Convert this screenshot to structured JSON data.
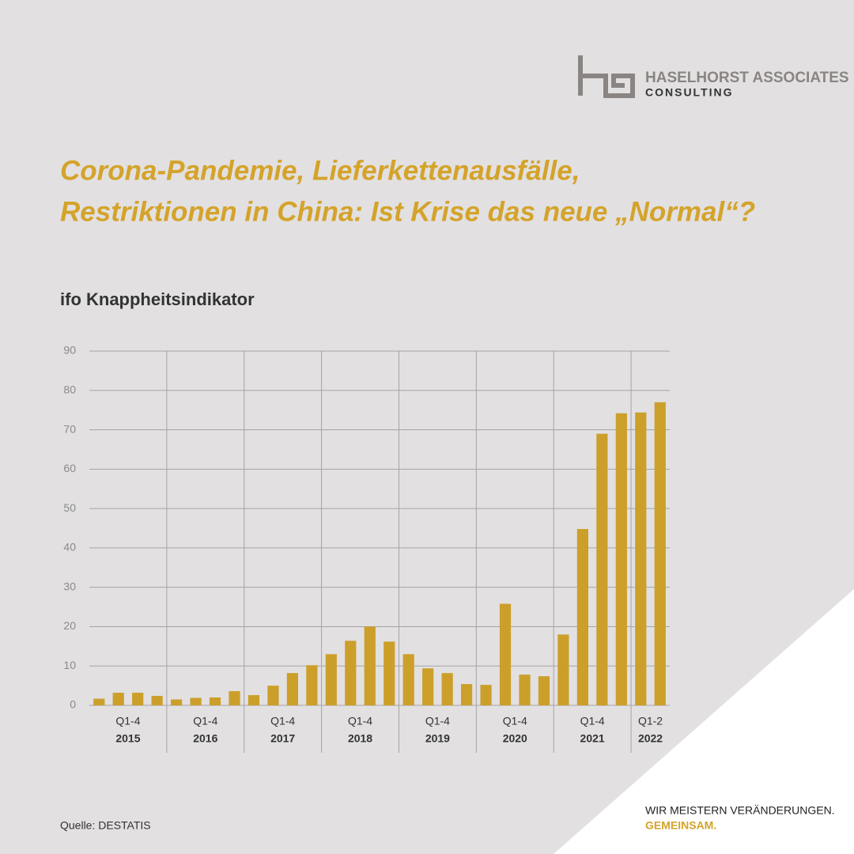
{
  "brand": {
    "name": "HASELHORST ASSOCIATES",
    "sub": "CONSULTING"
  },
  "headline": [
    "Corona-Pandemie, Lieferkettenausfälle,",
    "Restriktionen in China: Ist Krise das neue „Normal“?"
  ],
  "chart_data": {
    "type": "bar",
    "title": "ifo Knappheitsindikator",
    "color": "#cc9f2a",
    "ylim": [
      0,
      90
    ],
    "yticks": [
      0,
      10,
      20,
      30,
      40,
      50,
      60,
      70,
      80,
      90
    ],
    "grid": true,
    "groups": [
      {
        "period": "Q1-4",
        "year": "2015",
        "values": [
          1.7,
          3.2,
          3.2,
          2.4
        ]
      },
      {
        "period": "Q1-4",
        "year": "2016",
        "values": [
          1.5,
          1.9,
          2.0,
          3.6
        ]
      },
      {
        "period": "Q1-4",
        "year": "2017",
        "values": [
          2.6,
          5.0,
          8.2,
          10.2
        ]
      },
      {
        "period": "Q1-4",
        "year": "2018",
        "values": [
          13.0,
          16.4,
          20.0,
          16.2
        ]
      },
      {
        "period": "Q1-4",
        "year": "2019",
        "values": [
          13.0,
          9.4,
          8.2,
          5.4
        ]
      },
      {
        "period": "Q1-4",
        "year": "2020",
        "values": [
          5.2,
          25.8,
          7.8,
          7.4
        ]
      },
      {
        "period": "Q1-4",
        "year": "2021",
        "values": [
          18.0,
          44.8,
          69.0,
          74.2
        ]
      },
      {
        "period": "Q1-2",
        "year": "2022",
        "values": [
          74.4,
          77.0
        ]
      }
    ]
  },
  "source": "Quelle: DESTATIS",
  "tagline": [
    "WIR MEISTERN VERÄNDERUNGEN.",
    "GEMEINSAM."
  ]
}
